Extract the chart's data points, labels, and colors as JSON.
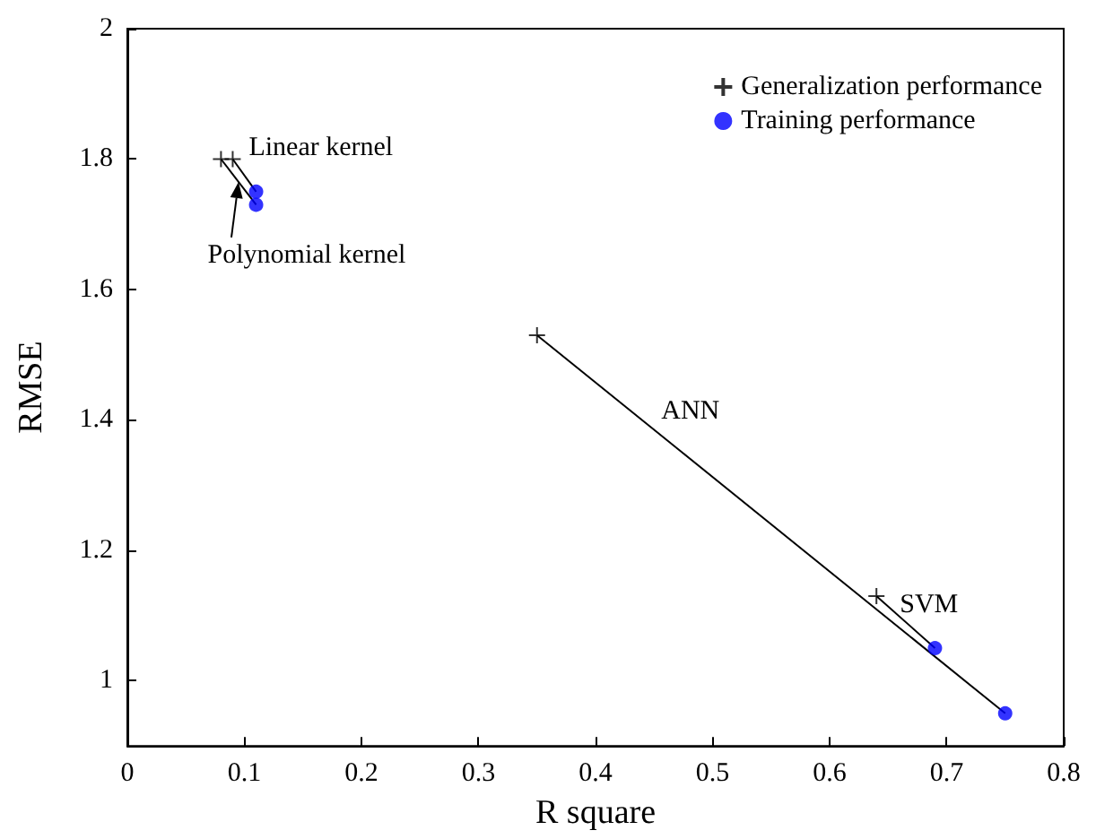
{
  "chart_data": {
    "type": "scatter",
    "xlabel": "R square",
    "ylabel": "RMSE",
    "xlim": [
      0,
      0.8
    ],
    "ylim": [
      0.9,
      2
    ],
    "xticks": [
      0,
      0.1,
      0.2,
      0.3,
      0.4,
      0.5,
      0.6,
      0.7,
      0.8
    ],
    "yticks": [
      1,
      1.2,
      1.4,
      1.6,
      1.8,
      2
    ],
    "legend": "top right",
    "grid": false,
    "series": [
      {
        "name": "Generalization performance",
        "color": "#000000",
        "marker": "cross",
        "x": [
          0.08,
          0.09,
          0.35,
          0.64
        ],
        "values": [
          1.8,
          1.8,
          1.53,
          1.13
        ]
      },
      {
        "name": "Training performance",
        "color": "#0000ff",
        "marker": "circle",
        "x": [
          0.11,
          0.11,
          0.69,
          0.75
        ],
        "values": [
          1.73,
          1.75,
          1.05,
          0.95
        ]
      },
      {
        "type": "line",
        "color": "#000000",
        "marker": "none",
        "x": [
          0.09,
          0.11
        ],
        "values": [
          1.8,
          1.75
        ]
      },
      {
        "type": "line",
        "color": "#000000",
        "marker": "none",
        "x": [
          0.08,
          0.11
        ],
        "values": [
          1.8,
          1.73
        ]
      },
      {
        "type": "line",
        "color": "#000000",
        "marker": "none",
        "x": [
          0.35,
          0.75
        ],
        "values": [
          1.53,
          0.95
        ]
      },
      {
        "type": "line",
        "color": "#000000",
        "marker": "none",
        "x": [
          0.64,
          0.69
        ],
        "values": [
          1.13,
          1.05
        ]
      }
    ],
    "annotations": [
      {
        "text": "Linear kernel",
        "x": 0.09,
        "y": 1.8
      },
      {
        "text": "Polynomial kernel",
        "x": 0.095,
        "y": 1.765
      },
      {
        "text": "ANN",
        "x": 0.45,
        "y": 1.385
      },
      {
        "text": "SVM",
        "x": 0.64,
        "y": 1.13
      }
    ]
  }
}
